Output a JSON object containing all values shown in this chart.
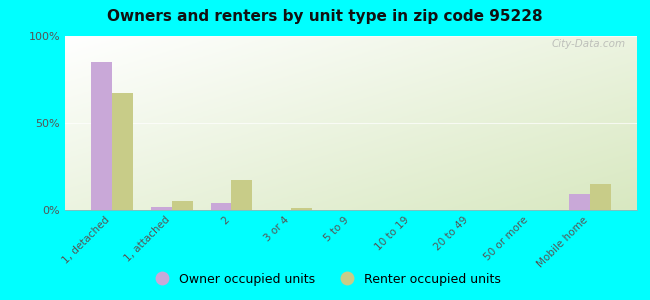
{
  "title": "Owners and renters by unit type in zip code 95228",
  "categories": [
    "1, detached",
    "1, attached",
    "2",
    "3 or 4",
    "5 to 9",
    "10 to 19",
    "20 to 49",
    "50 or more",
    "Mobile home"
  ],
  "owner_values": [
    85,
    2,
    4,
    0,
    0,
    0,
    0,
    0,
    9
  ],
  "renter_values": [
    67,
    5,
    17,
    1,
    0,
    0,
    0,
    0,
    15
  ],
  "owner_color": "#c9a8d8",
  "renter_color": "#c8cc88",
  "background_fig": "#00ffff",
  "ylim": [
    0,
    100
  ],
  "yticks": [
    0,
    50,
    100
  ],
  "ytick_labels": [
    "0%",
    "50%",
    "100%"
  ],
  "legend_owner": "Owner occupied units",
  "legend_renter": "Renter occupied units",
  "bar_width": 0.35,
  "watermark": "City-Data.com"
}
